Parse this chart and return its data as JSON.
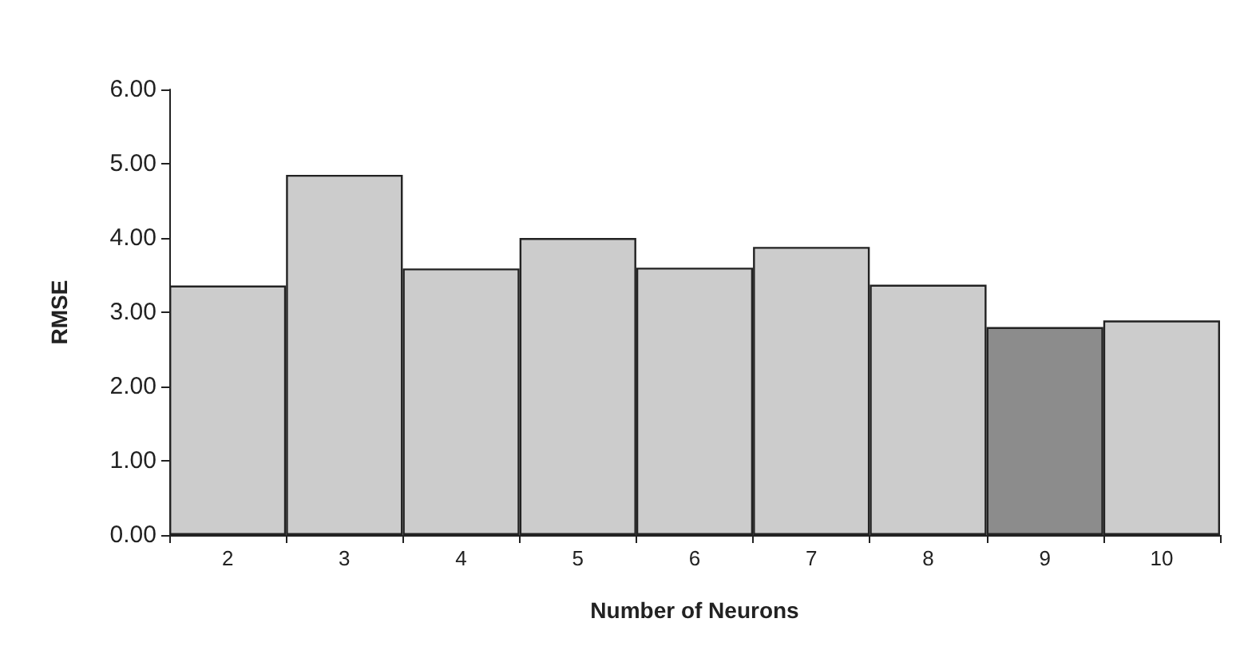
{
  "chart_data": {
    "type": "bar",
    "xlabel": "Number of Neurons",
    "ylabel": "RMSE",
    "categories": [
      "2",
      "3",
      "4",
      "5",
      "6",
      "7",
      "8",
      "9",
      "10"
    ],
    "values": [
      3.36,
      4.85,
      3.59,
      4.0,
      3.6,
      3.88,
      3.37,
      2.8,
      2.89
    ],
    "colors": [
      "#cccccc",
      "#cccccc",
      "#cccccc",
      "#cccccc",
      "#cccccc",
      "#cccccc",
      "#cccccc",
      "#8c8c8c",
      "#cccccc"
    ],
    "ylim": [
      0,
      6
    ],
    "yticks": [
      {
        "value": 0,
        "label": "0.00"
      },
      {
        "value": 1,
        "label": "1.00"
      },
      {
        "value": 2,
        "label": "2.00"
      },
      {
        "value": 3,
        "label": "3.00"
      },
      {
        "value": 4,
        "label": "4.00"
      },
      {
        "value": 5,
        "label": "5.00"
      },
      {
        "value": 6,
        "label": "6.00"
      }
    ],
    "grid": false
  }
}
